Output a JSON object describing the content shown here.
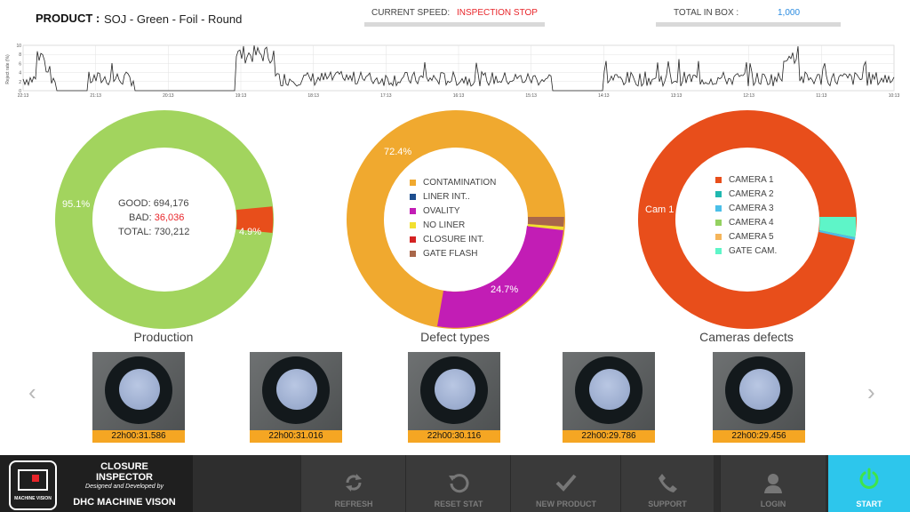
{
  "header": {
    "product_label": "PRODUCT :",
    "product_value": "SOJ - Green - Foil - Round",
    "speed_label": "CURRENT SPEED:",
    "speed_value": "INSPECTION STOP",
    "total_label": "TOTAL IN BOX :",
    "total_value": "1,000"
  },
  "timeline": {
    "ylabel": "Reject rate (%)",
    "y_ticks": [
      "10",
      "8",
      "6",
      "4",
      "2",
      "0"
    ],
    "x_ticks": [
      "22:13",
      "21:13",
      "20:13",
      "19:13",
      "18:13",
      "17:13",
      "16:13",
      "15:13",
      "14:13",
      "13:13",
      "12:13",
      "11:13",
      "10:13"
    ]
  },
  "production": {
    "title": "Production",
    "good_label": "GOOD:",
    "good_value": "694,176",
    "bad_label": "BAD:",
    "bad_value": "36,036",
    "total_label": "TOTAL:",
    "total_value": "730,212",
    "pct_good": "95.1%",
    "pct_bad": "4.9%"
  },
  "defects": {
    "title": "Defect types",
    "pct_contamination": "72.4%",
    "pct_ovality": "24.7%",
    "legend": [
      {
        "label": "CONTAMINATION",
        "color": "#f0a92f"
      },
      {
        "label": "LINER INT..",
        "color": "#1d4e8f"
      },
      {
        "label": "OVALITY",
        "color": "#c21db5"
      },
      {
        "label": "NO LINER",
        "color": "#f2e030"
      },
      {
        "label": "CLOSURE INT.",
        "color": "#d42222"
      },
      {
        "label": "GATE FLASH",
        "color": "#a9674a"
      }
    ]
  },
  "cameras": {
    "title": "Cameras defects",
    "slice_label": "Cam 1",
    "legend": [
      {
        "label": "CAMERA 1",
        "color": "#e84e1b"
      },
      {
        "label": "CAMERA 2",
        "color": "#1fb8b0"
      },
      {
        "label": "CAMERA 3",
        "color": "#4bbfe8"
      },
      {
        "label": "CAMERA 4",
        "color": "#94d161"
      },
      {
        "label": "CAMERA 5",
        "color": "#f5b55a"
      },
      {
        "label": "GATE CAM.",
        "color": "#5ef5c8"
      }
    ]
  },
  "thumbnails": [
    "22h00:31.586",
    "22h00:31.016",
    "22h00:30.116",
    "22h00:29.786",
    "22h00:29.456"
  ],
  "footer": {
    "logo_text": "MACHINE VISION",
    "app_title": "CLOSURE INSPECTOR",
    "designed_by": "Designed and Developed by",
    "company": "DHC MACHINE VISON",
    "refresh": "REFRESH",
    "reset": "RESET STAT",
    "new_product": "NEW PRODUCT",
    "support": "SUPPORT",
    "login": "LOGIN",
    "start": "START"
  },
  "colors": {
    "good": "#a2d45e",
    "bad": "#e84e1b",
    "contamination": "#f0a92f",
    "ovality": "#c21db5",
    "camera1": "#e84e1b",
    "start_button": "#2dc6ec"
  }
}
